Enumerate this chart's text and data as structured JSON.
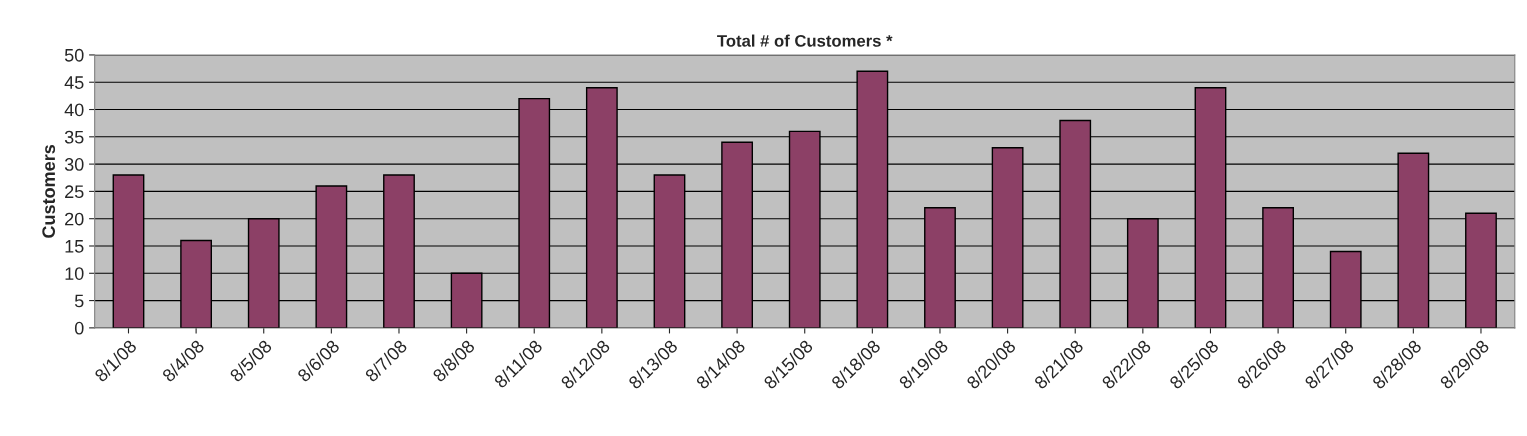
{
  "chart_data": {
    "type": "bar",
    "title": "Total # of Customers *",
    "ylabel": "Customers",
    "categories": [
      "8/1/08",
      "8/4/08",
      "8/5/08",
      "8/6/08",
      "8/7/08",
      "8/8/08",
      "8/11/08",
      "8/12/08",
      "8/13/08",
      "8/14/08",
      "8/15/08",
      "8/18/08",
      "8/19/08",
      "8/20/08",
      "8/21/08",
      "8/22/08",
      "8/25/08",
      "8/26/08",
      "8/27/08",
      "8/28/08",
      "8/29/08"
    ],
    "values": [
      28,
      16,
      20,
      26,
      28,
      10,
      42,
      44,
      28,
      34,
      36,
      47,
      22,
      33,
      38,
      20,
      44,
      22,
      14,
      32,
      21
    ],
    "color": "#993366",
    "ylim": [
      0,
      50
    ],
    "yticks": [
      0,
      5,
      10,
      15,
      20,
      25,
      30,
      35,
      40,
      45,
      50
    ],
    "grid": "y",
    "legend": false
  }
}
